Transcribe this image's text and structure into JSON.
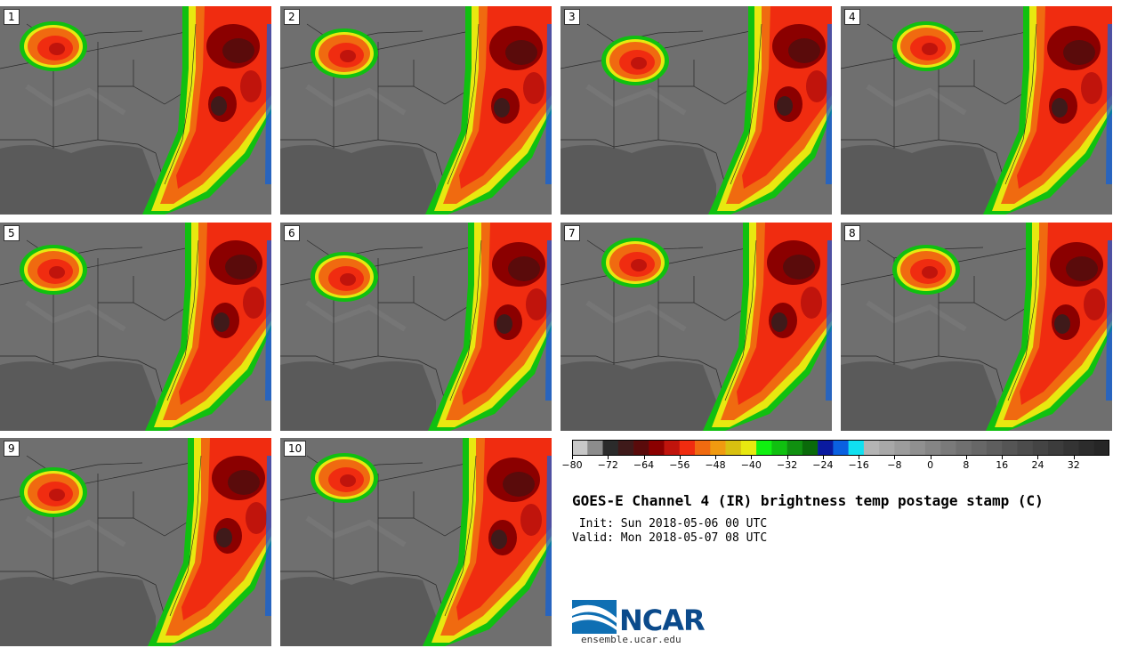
{
  "panels": [
    {
      "label": "1"
    },
    {
      "label": "2"
    },
    {
      "label": "3"
    },
    {
      "label": "4"
    },
    {
      "label": "5"
    },
    {
      "label": "6"
    },
    {
      "label": "7"
    },
    {
      "label": "8"
    },
    {
      "label": "9"
    },
    {
      "label": "10"
    }
  ],
  "colorbar": {
    "colors": [
      "#c8c8c8",
      "#8c8c8c",
      "#2b2b2b",
      "#3f1a1a",
      "#5a0b0b",
      "#8b0000",
      "#c0140c",
      "#f02c10",
      "#f06a10",
      "#f09a10",
      "#d8c010",
      "#e8e810",
      "#10f010",
      "#10c010",
      "#109010",
      "#0a6a0a",
      "#0a1aa0",
      "#0a60e0",
      "#10e0f0",
      "#b4b4b4",
      "#a8a8a8",
      "#9c9c9c",
      "#909090",
      "#858585",
      "#7a7a7a",
      "#707070",
      "#676767",
      "#5e5e5e",
      "#555555",
      "#4c4c4c",
      "#444444",
      "#3c3c3c",
      "#343434",
      "#2c2c2c",
      "#262626"
    ],
    "tick_labels": [
      "−80",
      "−72",
      "−64",
      "−56",
      "−48",
      "−40",
      "−32",
      "−24",
      "−16",
      "−8",
      "0",
      "8",
      "16",
      "24",
      "32"
    ]
  },
  "title": "GOES-E Channel 4 (IR) brightness temp postage stamp (C)",
  "init_text": " Init: Sun 2018-05-06 00 UTC",
  "valid_text": "Valid: Mon 2018-05-07 08 UTC",
  "logo_text": "NCAR",
  "site_text": "ensemble.ucar.edu"
}
